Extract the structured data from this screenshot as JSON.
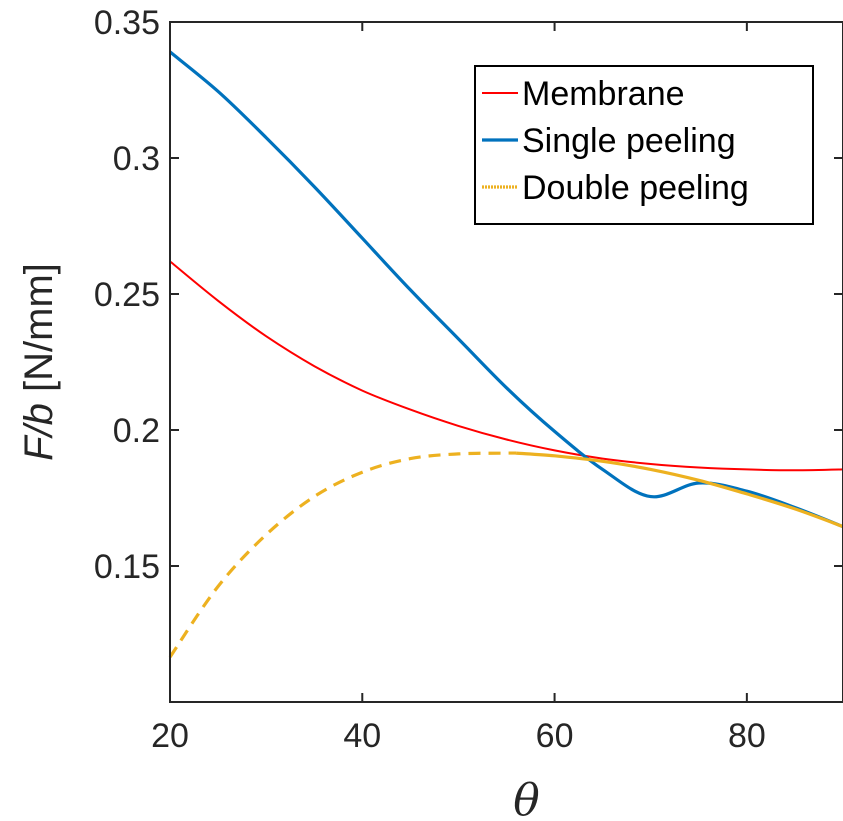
{
  "chart_data": {
    "type": "line",
    "title": "",
    "xlabel": "θ",
    "ylabel_italic": "F/b",
    "ylabel_rest": " [N/mm]",
    "xlim": [
      20,
      90
    ],
    "ylim": [
      0.1,
      0.35
    ],
    "xticks": [
      20,
      40,
      60,
      80
    ],
    "xtick_labels": [
      "20",
      "40",
      "60",
      "80"
    ],
    "yticks": [
      0.15,
      0.2,
      0.25,
      0.3,
      0.35
    ],
    "ytick_labels": [
      "0.15",
      "0.2",
      "0.25",
      "0.3",
      "0.35"
    ],
    "grid": false,
    "legend_position": "top-right",
    "series": [
      {
        "name": "Membrane",
        "color": "#ff0000",
        "style": "solid",
        "x": [
          20,
          25,
          30,
          35,
          40,
          45,
          50,
          55,
          60,
          65,
          70,
          75,
          80,
          85,
          90
        ],
        "y": [
          0.262,
          0.2475,
          0.2345,
          0.2235,
          0.2145,
          0.2075,
          0.2015,
          0.1965,
          0.1925,
          0.1895,
          0.1875,
          0.1862,
          0.1855,
          0.1852,
          0.1855
        ]
      },
      {
        "name": "Single peeling",
        "color": "#0072bd",
        "style": "solid",
        "x": [
          20,
          25,
          30,
          35,
          40,
          45,
          50,
          55,
          60,
          65,
          70,
          75,
          80,
          85,
          90
        ],
        "y": [
          0.339,
          0.3245,
          0.3075,
          0.2895,
          0.2705,
          0.2515,
          0.2335,
          0.2155,
          0.1995,
          0.1855,
          0.1755,
          0.1805,
          0.1775,
          0.1715,
          0.1645
        ]
      },
      {
        "name": "Double peeling",
        "color": "#edb120",
        "style": "solid",
        "x": [
          56,
          60,
          65,
          70,
          75,
          80,
          85,
          90
        ],
        "y": [
          0.1915,
          0.1905,
          0.1885,
          0.1855,
          0.1815,
          0.1765,
          0.171,
          0.1645
        ]
      },
      {
        "name": "",
        "color": "#edb120",
        "style": "dashed",
        "x": [
          20,
          25,
          30,
          35,
          40,
          45,
          50,
          55,
          56
        ],
        "y": [
          0.1165,
          0.1425,
          0.1615,
          0.1755,
          0.1845,
          0.1895,
          0.1912,
          0.1915,
          0.1915
        ]
      }
    ]
  }
}
